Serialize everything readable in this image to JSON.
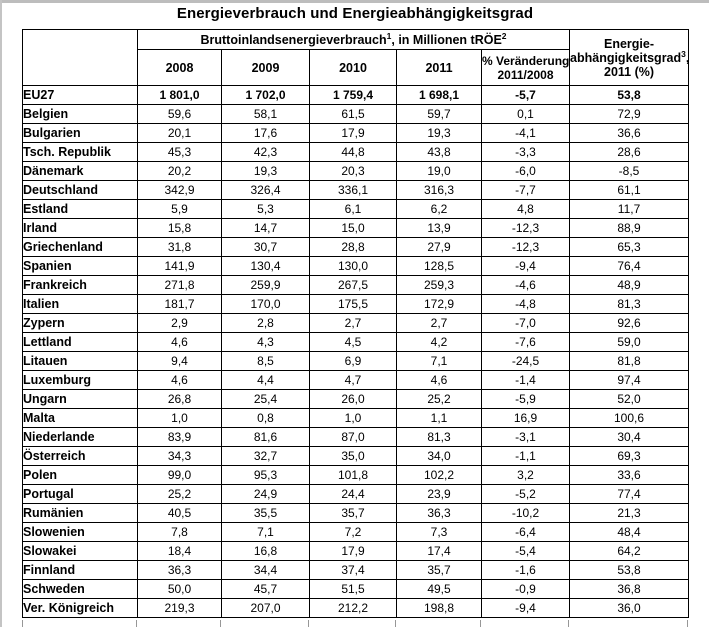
{
  "page": {
    "title": "Energieverbrauch und Energieabhängigkeitsgrad"
  },
  "table": {
    "header": {
      "span_title": "Bruttoinlandsenergieverbrauch",
      "span_sup1": "1",
      "span_mid": ", in Millionen tRÖE",
      "span_sup2": "2",
      "years": [
        "2008",
        "2009",
        "2010",
        "2011"
      ],
      "change_line1": "% Veränderung",
      "change_line2": "2011/2008",
      "dep_line1": "Energie-",
      "dep_line2": "abhängigkeitsgrad",
      "dep_sup": "3",
      "dep_comma": ",",
      "dep_line3": "2011 (%)"
    },
    "rows": [
      {
        "name": "EU27",
        "bold": true,
        "values": [
          "1 801,0",
          "1 702,0",
          "1 759,4",
          "1 698,1",
          "-5,7",
          "53,8"
        ]
      },
      {
        "name": "Belgien",
        "bold": false,
        "values": [
          "59,6",
          "58,1",
          "61,5",
          "59,7",
          "0,1",
          "72,9"
        ]
      },
      {
        "name": "Bulgarien",
        "bold": false,
        "values": [
          "20,1",
          "17,6",
          "17,9",
          "19,3",
          "-4,1",
          "36,6"
        ]
      },
      {
        "name": "Tsch. Republik",
        "bold": false,
        "values": [
          "45,3",
          "42,3",
          "44,8",
          "43,8",
          "-3,3",
          "28,6"
        ]
      },
      {
        "name": "Dänemark",
        "bold": false,
        "values": [
          "20,2",
          "19,3",
          "20,3",
          "19,0",
          "-6,0",
          "-8,5"
        ]
      },
      {
        "name": "Deutschland",
        "bold": false,
        "values": [
          "342,9",
          "326,4",
          "336,1",
          "316,3",
          "-7,7",
          "61,1"
        ]
      },
      {
        "name": "Estland",
        "bold": false,
        "values": [
          "5,9",
          "5,3",
          "6,1",
          "6,2",
          "4,8",
          "11,7"
        ]
      },
      {
        "name": "Irland",
        "bold": false,
        "values": [
          "15,8",
          "14,7",
          "15,0",
          "13,9",
          "-12,3",
          "88,9"
        ]
      },
      {
        "name": "Griechenland",
        "bold": false,
        "values": [
          "31,8",
          "30,7",
          "28,8",
          "27,9",
          "-12,3",
          "65,3"
        ]
      },
      {
        "name": "Spanien",
        "bold": false,
        "values": [
          "141,9",
          "130,4",
          "130,0",
          "128,5",
          "-9,4",
          "76,4"
        ]
      },
      {
        "name": "Frankreich",
        "bold": false,
        "values": [
          "271,8",
          "259,9",
          "267,5",
          "259,3",
          "-4,6",
          "48,9"
        ]
      },
      {
        "name": "Italien",
        "bold": false,
        "values": [
          "181,7",
          "170,0",
          "175,5",
          "172,9",
          "-4,8",
          "81,3"
        ]
      },
      {
        "name": "Zypern",
        "bold": false,
        "values": [
          "2,9",
          "2,8",
          "2,7",
          "2,7",
          "-7,0",
          "92,6"
        ]
      },
      {
        "name": "Lettland",
        "bold": false,
        "values": [
          "4,6",
          "4,3",
          "4,5",
          "4,2",
          "-7,6",
          "59,0"
        ]
      },
      {
        "name": "Litauen",
        "bold": false,
        "values": [
          "9,4",
          "8,5",
          "6,9",
          "7,1",
          "-24,5",
          "81,8"
        ]
      },
      {
        "name": "Luxemburg",
        "bold": false,
        "values": [
          "4,6",
          "4,4",
          "4,7",
          "4,6",
          "-1,4",
          "97,4"
        ]
      },
      {
        "name": "Ungarn",
        "bold": false,
        "values": [
          "26,8",
          "25,4",
          "26,0",
          "25,2",
          "-5,9",
          "52,0"
        ]
      },
      {
        "name": "Malta",
        "bold": false,
        "values": [
          "1,0",
          "0,8",
          "1,0",
          "1,1",
          "16,9",
          "100,6"
        ]
      },
      {
        "name": "Niederlande",
        "bold": false,
        "values": [
          "83,9",
          "81,6",
          "87,0",
          "81,3",
          "-3,1",
          "30,4"
        ]
      },
      {
        "name": "Österreich",
        "bold": false,
        "values": [
          "34,3",
          "32,7",
          "35,0",
          "34,0",
          "-1,1",
          "69,3"
        ]
      },
      {
        "name": "Polen",
        "bold": false,
        "values": [
          "99,0",
          "95,3",
          "101,8",
          "102,2",
          "3,2",
          "33,6"
        ]
      },
      {
        "name": "Portugal",
        "bold": false,
        "values": [
          "25,2",
          "24,9",
          "24,4",
          "23,9",
          "-5,2",
          "77,4"
        ]
      },
      {
        "name": "Rumänien",
        "bold": false,
        "values": [
          "40,5",
          "35,5",
          "35,7",
          "36,3",
          "-10,2",
          "21,3"
        ]
      },
      {
        "name": "Slowenien",
        "bold": false,
        "values": [
          "7,8",
          "7,1",
          "7,2",
          "7,3",
          "-6,4",
          "48,4"
        ]
      },
      {
        "name": "Slowakei",
        "bold": false,
        "values": [
          "18,4",
          "16,8",
          "17,9",
          "17,4",
          "-5,4",
          "64,2"
        ]
      },
      {
        "name": "Finnland",
        "bold": false,
        "values": [
          "36,3",
          "34,4",
          "37,4",
          "35,7",
          "-1,6",
          "53,8"
        ]
      },
      {
        "name": "Schweden",
        "bold": false,
        "values": [
          "50,0",
          "45,7",
          "51,5",
          "49,5",
          "-0,9",
          "36,8"
        ]
      },
      {
        "name": "Ver. Königreich",
        "bold": false,
        "values": [
          "219,3",
          "207,0",
          "212,2",
          "198,8",
          "-9,4",
          "36,0"
        ]
      }
    ]
  }
}
